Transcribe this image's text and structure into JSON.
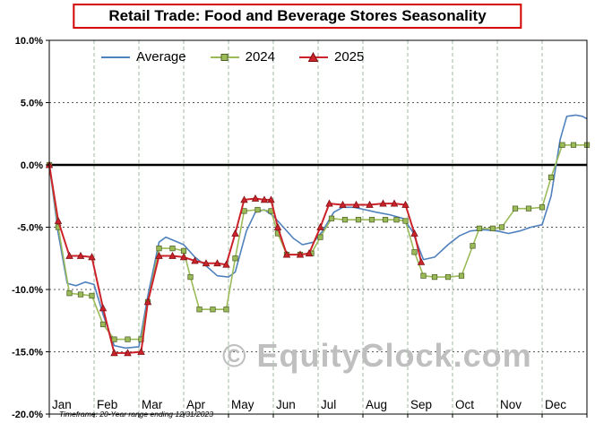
{
  "title": "Retail Trade: Food and Beverage Stores Seasonality",
  "watermark": "© EquityClock.com",
  "footnote": "Timeframe: 20-Year range ending 12/31/2023",
  "colors": {
    "grid_vertical": "#9db79d",
    "grid_horizontal": "#595959",
    "axis": "#000000",
    "zero_line": "#000000",
    "title_border": "#d40000",
    "watermark": "#bfbfbf"
  },
  "chart_data": {
    "type": "line",
    "title": "Retail Trade: Food and Beverage Stores Seasonality",
    "xlabel": "",
    "ylabel": "",
    "grid": true,
    "zero_line": true,
    "legend_position": "top-inside",
    "x_axis": {
      "categories": [
        "Jan",
        "Feb",
        "Mar",
        "Apr",
        "May",
        "Jun",
        "Jul",
        "Aug",
        "Sep",
        "Oct",
        "Nov",
        "Dec"
      ],
      "range": [
        0,
        12
      ],
      "unit": "month"
    },
    "y_axis": {
      "range": [
        -20,
        10
      ],
      "ticks": [
        10,
        5,
        0,
        -5,
        -10,
        -15,
        -20
      ],
      "tick_labels": [
        "10.0%",
        "5.0%",
        "0.0%",
        "-5.0%",
        "-10.0%",
        "-15.0%",
        "-20.0%"
      ],
      "unit": "percent"
    },
    "series": [
      {
        "name": "Average",
        "color": "#4f81bd",
        "marker": "none",
        "line_width": 1.6,
        "points": [
          [
            0,
            0
          ],
          [
            0.2,
            -5.5
          ],
          [
            0.4,
            -9.5
          ],
          [
            0.6,
            -9.7
          ],
          [
            0.8,
            -9.4
          ],
          [
            1,
            -9.6
          ],
          [
            1.2,
            -12
          ],
          [
            1.45,
            -14.5
          ],
          [
            1.7,
            -14.7
          ],
          [
            2,
            -14.6
          ],
          [
            2.2,
            -10.5
          ],
          [
            2.45,
            -6.2
          ],
          [
            2.6,
            -5.8
          ],
          [
            2.8,
            -6.1
          ],
          [
            3,
            -6.4
          ],
          [
            3.25,
            -7.4
          ],
          [
            3.5,
            -8.1
          ],
          [
            3.75,
            -8.9
          ],
          [
            4,
            -9
          ],
          [
            4.15,
            -8.6
          ],
          [
            4.4,
            -5.3
          ],
          [
            4.6,
            -3.8
          ],
          [
            4.8,
            -3.6
          ],
          [
            5,
            -4.1
          ],
          [
            5.2,
            -4.9
          ],
          [
            5.45,
            -5.9
          ],
          [
            5.65,
            -6.4
          ],
          [
            5.9,
            -6.2
          ],
          [
            6.1,
            -5.3
          ],
          [
            6.35,
            -3.8
          ],
          [
            6.55,
            -3.4
          ],
          [
            6.8,
            -3.4
          ],
          [
            7.05,
            -3.6
          ],
          [
            7.3,
            -3.8
          ],
          [
            7.6,
            -4
          ],
          [
            7.9,
            -4.3
          ],
          [
            8.1,
            -5.3
          ],
          [
            8.35,
            -7.6
          ],
          [
            8.6,
            -7.4
          ],
          [
            8.9,
            -6.4
          ],
          [
            9.15,
            -5.7
          ],
          [
            9.4,
            -5.3
          ],
          [
            9.7,
            -5.2
          ],
          [
            10,
            -5.3
          ],
          [
            10.25,
            -5.5
          ],
          [
            10.5,
            -5.3
          ],
          [
            10.75,
            -5
          ],
          [
            11,
            -4.8
          ],
          [
            11.2,
            -2.5
          ],
          [
            11.4,
            2
          ],
          [
            11.55,
            3.9
          ],
          [
            11.75,
            4
          ],
          [
            11.9,
            3.9
          ],
          [
            12,
            3.7
          ]
        ]
      },
      {
        "name": "2024",
        "color": "#9bbb59",
        "marker": "square",
        "marker_edge": "#4f6228",
        "line_width": 1.6,
        "points": [
          [
            0,
            0
          ],
          [
            0.2,
            -5
          ],
          [
            0.45,
            -10.3
          ],
          [
            0.7,
            -10.4
          ],
          [
            0.95,
            -10.5
          ],
          [
            1.2,
            -12.8
          ],
          [
            1.45,
            -14
          ],
          [
            1.75,
            -14
          ],
          [
            2.05,
            -14
          ],
          [
            2.2,
            -11
          ],
          [
            2.45,
            -6.7
          ],
          [
            2.75,
            -6.7
          ],
          [
            3,
            -6.9
          ],
          [
            3.15,
            -9
          ],
          [
            3.35,
            -11.6
          ],
          [
            3.65,
            -11.6
          ],
          [
            3.95,
            -11.6
          ],
          [
            4.15,
            -7.5
          ],
          [
            4.35,
            -3.7
          ],
          [
            4.65,
            -3.6
          ],
          [
            4.95,
            -3.7
          ],
          [
            5.1,
            -5.5
          ],
          [
            5.3,
            -7.2
          ],
          [
            5.6,
            -7.2
          ],
          [
            5.85,
            -7.1
          ],
          [
            6.05,
            -5.8
          ],
          [
            6.3,
            -4.3
          ],
          [
            6.6,
            -4.4
          ],
          [
            6.9,
            -4.4
          ],
          [
            7.2,
            -4.4
          ],
          [
            7.5,
            -4.4
          ],
          [
            7.75,
            -4.4
          ],
          [
            7.95,
            -4.5
          ],
          [
            8.15,
            -7
          ],
          [
            8.35,
            -8.9
          ],
          [
            8.6,
            -9
          ],
          [
            8.9,
            -9
          ],
          [
            9.2,
            -8.9
          ],
          [
            9.45,
            -6.5
          ],
          [
            9.6,
            -5.1
          ],
          [
            9.9,
            -5.1
          ],
          [
            10.1,
            -5
          ],
          [
            10.4,
            -3.5
          ],
          [
            10.7,
            -3.5
          ],
          [
            11,
            -3.4
          ],
          [
            11.2,
            -1
          ],
          [
            11.45,
            1.6
          ],
          [
            11.7,
            1.6
          ],
          [
            12,
            1.6
          ]
        ]
      },
      {
        "name": "2025",
        "color": "#cc2229",
        "marker": "triangle",
        "marker_edge": "#7a1015",
        "line_width": 2,
        "points": [
          [
            0,
            0
          ],
          [
            0.2,
            -4.5
          ],
          [
            0.45,
            -7.3
          ],
          [
            0.7,
            -7.3
          ],
          [
            0.95,
            -7.4
          ],
          [
            1.2,
            -11.5
          ],
          [
            1.45,
            -15.1
          ],
          [
            1.75,
            -15.1
          ],
          [
            2.05,
            -15
          ],
          [
            2.2,
            -11
          ],
          [
            2.45,
            -7.3
          ],
          [
            2.75,
            -7.3
          ],
          [
            3,
            -7.4
          ],
          [
            3.25,
            -7.7
          ],
          [
            3.5,
            -7.9
          ],
          [
            3.75,
            -7.9
          ],
          [
            3.95,
            -8
          ],
          [
            4.15,
            -5.5
          ],
          [
            4.35,
            -2.8
          ],
          [
            4.6,
            -2.7
          ],
          [
            4.8,
            -2.8
          ],
          [
            4.95,
            -2.8
          ],
          [
            5.1,
            -5
          ],
          [
            5.3,
            -7.2
          ],
          [
            5.6,
            -7.2
          ],
          [
            5.8,
            -7.1
          ],
          [
            6.05,
            -5
          ],
          [
            6.25,
            -3.1
          ],
          [
            6.55,
            -3.2
          ],
          [
            6.85,
            -3.2
          ],
          [
            7.15,
            -3.2
          ],
          [
            7.45,
            -3.1
          ],
          [
            7.7,
            -3.1
          ],
          [
            7.95,
            -3.2
          ],
          [
            8.15,
            -5.5
          ],
          [
            8.3,
            -7.8
          ]
        ]
      }
    ]
  }
}
